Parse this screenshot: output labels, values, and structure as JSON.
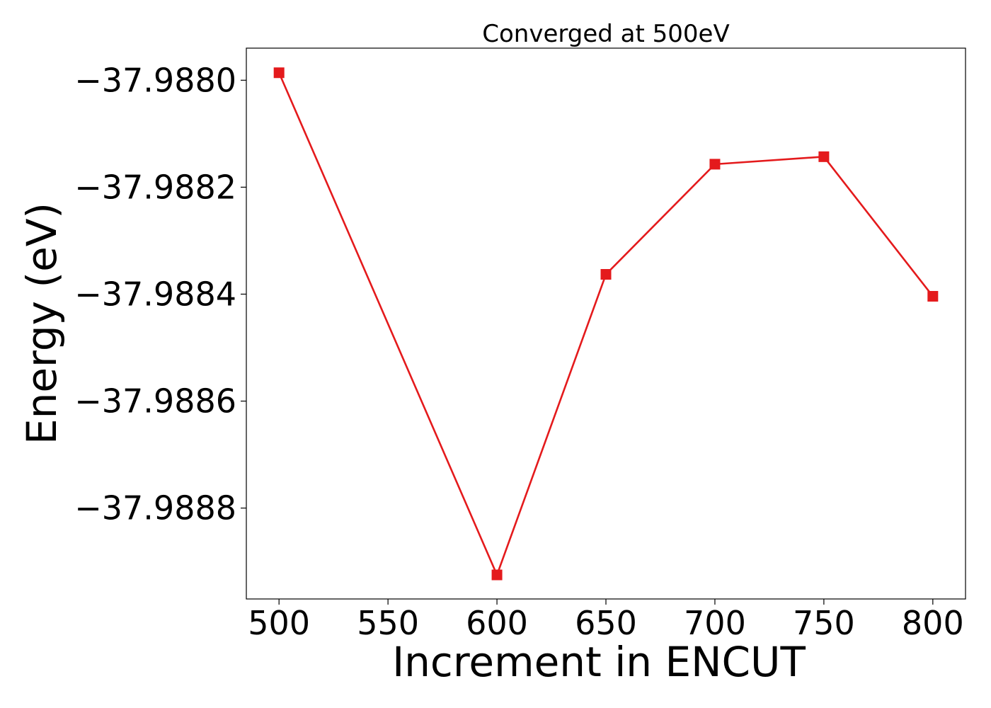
{
  "chart_data": {
    "type": "line",
    "title": "Converged at 500eV",
    "xlabel": "Increment in ENCUT",
    "ylabel": "Energy (eV)",
    "xlim": [
      485,
      815
    ],
    "ylim": [
      -37.98897,
      -37.98794
    ],
    "x_ticks": [
      500,
      550,
      600,
      650,
      700,
      750,
      800
    ],
    "x_tick_labels": [
      "500",
      "550",
      "600",
      "650",
      "700",
      "750",
      "800"
    ],
    "y_ticks": [
      -37.988,
      -37.9882,
      -37.9884,
      -37.9886,
      -37.9888
    ],
    "y_tick_labels": [
      "−37.9880",
      "−37.9882",
      "−37.9884",
      "−37.9886",
      "−37.9888"
    ],
    "grid": false,
    "legend": "none",
    "series": [
      {
        "color": "#e41a1c",
        "marker": "square",
        "x": [
          500,
          600,
          650,
          700,
          750,
          800
        ],
        "y": [
          -37.987986,
          -37.988925,
          -37.988363,
          -37.988157,
          -37.988143,
          -37.988404
        ]
      }
    ]
  }
}
